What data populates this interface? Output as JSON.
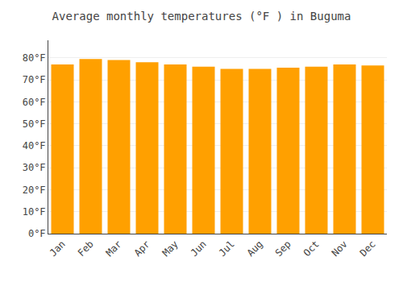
{
  "chart_data": {
    "type": "bar",
    "title": "Average monthly temperatures (°F ) in Buguma",
    "categories": [
      "Jan",
      "Feb",
      "Mar",
      "Apr",
      "May",
      "Jun",
      "Jul",
      "Aug",
      "Sep",
      "Oct",
      "Nov",
      "Dec"
    ],
    "values": [
      77.0,
      79.5,
      79.0,
      78.0,
      77.0,
      76.0,
      75.0,
      75.0,
      75.5,
      76.0,
      77.0,
      76.5
    ],
    "color": "#FFA000",
    "ylim": [
      0,
      88
    ],
    "yticks": [
      {
        "value": 0,
        "label": "0°F"
      },
      {
        "value": 10,
        "label": "10°F"
      },
      {
        "value": 20,
        "label": "20°F"
      },
      {
        "value": 30,
        "label": "30°F"
      },
      {
        "value": 40,
        "label": "40°F"
      },
      {
        "value": 50,
        "label": "50°F"
      },
      {
        "value": 60,
        "label": "60°F"
      },
      {
        "value": 70,
        "label": "70°F"
      },
      {
        "value": 80,
        "label": "80°F"
      }
    ],
    "grid": true
  }
}
